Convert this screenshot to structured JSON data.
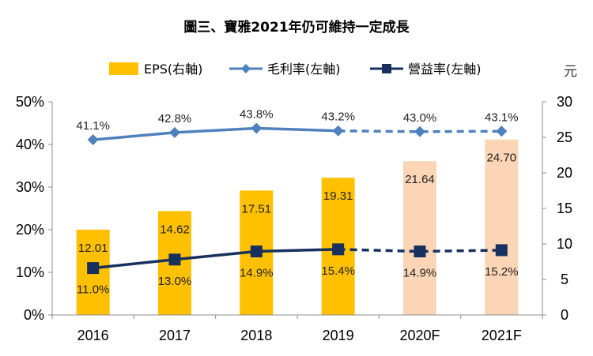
{
  "chart_data": {
    "type": "bar+line",
    "title": "圖三、寶雅2021年仍可維持一定成長",
    "categories": [
      "2016",
      "2017",
      "2018",
      "2019",
      "2020F",
      "2021F"
    ],
    "forecast_from_index": 4,
    "eps": {
      "name": "EPS(右軸)",
      "axis": "right",
      "values": [
        12.01,
        14.62,
        17.51,
        19.31,
        21.64,
        24.7
      ],
      "labels": [
        "12.01",
        "14.62",
        "17.51",
        "19.31",
        "21.64",
        "24.70"
      ],
      "color": "#FFC000",
      "forecast_color": "#FBD5B5"
    },
    "gross_margin": {
      "name": "毛利率(左軸)",
      "axis": "left",
      "values": [
        41.1,
        42.8,
        43.8,
        43.2,
        43.0,
        43.1
      ],
      "labels": [
        "41.1%",
        "42.8%",
        "43.8%",
        "43.2%",
        "43.0%",
        "43.1%"
      ],
      "color": "#4F81BD",
      "marker": "diamond"
    },
    "operating_margin": {
      "name": "營益率(左軸)",
      "axis": "left",
      "values": [
        11.0,
        13.0,
        14.9,
        15.4,
        14.9,
        15.2
      ],
      "labels": [
        "11.0%",
        "13.0%",
        "14.9%",
        "15.4%",
        "14.9%",
        "15.2%"
      ],
      "color": "#17305E",
      "marker": "square"
    },
    "left_axis": {
      "ylim": [
        0,
        50
      ],
      "ticks": [
        0,
        10,
        20,
        30,
        40,
        50
      ],
      "tick_labels": [
        "0%",
        "10%",
        "20%",
        "30%",
        "40%",
        "50%"
      ]
    },
    "right_axis": {
      "ylim": [
        0,
        30
      ],
      "ticks": [
        0,
        5,
        10,
        15,
        20,
        25,
        30
      ],
      "tick_labels": [
        "0",
        "5",
        "10",
        "15",
        "20",
        "25",
        "30"
      ],
      "unit": "元"
    },
    "grid": false,
    "legend_position": "top"
  }
}
